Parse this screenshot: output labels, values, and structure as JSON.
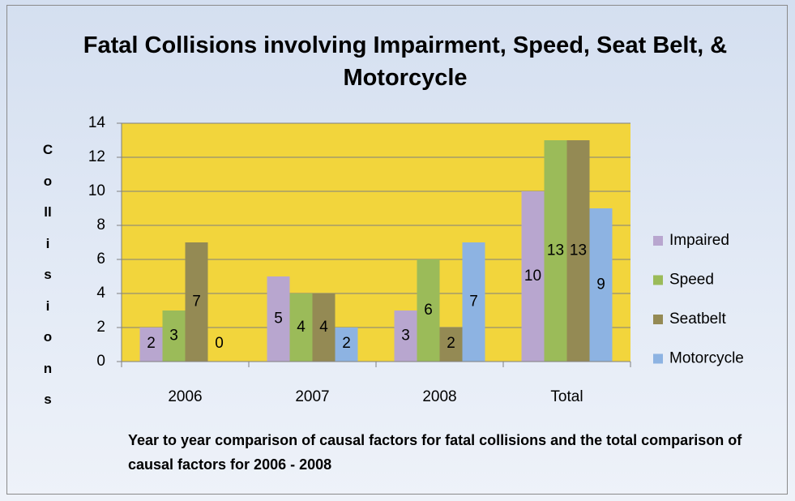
{
  "chart_data": {
    "type": "bar",
    "title": "Fatal Collisions involving Impairment, Speed, Seat Belt, & Motorcycle",
    "y_label": "Collisions",
    "x_label": "Year to year comparison of causal factors for fatal collisions and the total  comparison of causal factors for 2006 - 2008",
    "categories": [
      "2006",
      "2007",
      "2008",
      "Total"
    ],
    "series": [
      {
        "name": "Impaired",
        "color": "#b8a6cf",
        "values": [
          2,
          5,
          3,
          10
        ]
      },
      {
        "name": "Speed",
        "color": "#9bbb59",
        "values": [
          3,
          4,
          6,
          13
        ]
      },
      {
        "name": "Seatbelt",
        "color": "#948a54",
        "values": [
          7,
          4,
          2,
          13
        ]
      },
      {
        "name": "Motorcycle",
        "color": "#8db3e2",
        "values": [
          0,
          2,
          7,
          9
        ]
      }
    ],
    "ylim": [
      0,
      14
    ],
    "yticks": [
      0,
      2,
      4,
      6,
      8,
      10,
      12,
      14
    ],
    "grid": true,
    "legend": "right",
    "plot_background": "#f2d53c"
  }
}
